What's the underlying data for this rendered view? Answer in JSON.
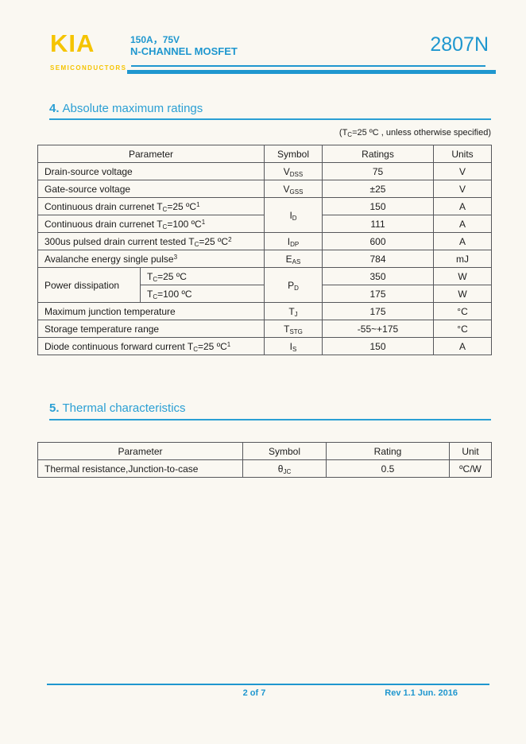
{
  "colors": {
    "accent_blue": "#1f97cf",
    "heading_blue": "#2a9fd4",
    "brand_yellow": "#f5c400"
  },
  "brand": {
    "logo": "KIA",
    "tagline": "SEMICONDUCTORS"
  },
  "header": {
    "spec_line": "150A，75V",
    "type_line": "N-CHANNEL MOSFET",
    "part_number": "2807N"
  },
  "section_abs_max": {
    "number": "4.",
    "title": "Absolute maximum ratings",
    "note": [
      [
        "(T"
      ],
      [
        "C",
        "sub"
      ],
      [
        "=25 ºC , unless otherwise specified)"
      ]
    ],
    "columns": {
      "parameter": "Parameter",
      "symbol": "Symbol",
      "ratings": "Ratings",
      "units": "Units"
    },
    "rows": {
      "drain_source_voltage": {
        "param": [
          [
            "Drain-source voltage"
          ]
        ],
        "symbol": [
          [
            "V"
          ],
          [
            "DSS",
            "sub"
          ]
        ],
        "rating": "75",
        "unit": "V"
      },
      "gate_source_voltage": {
        "param": [
          [
            "Gate-source voltage"
          ]
        ],
        "symbol": [
          [
            "V"
          ],
          [
            "GSS",
            "sub"
          ]
        ],
        "rating": "±25",
        "unit": "V"
      },
      "cont_drain_current_25": {
        "param": [
          [
            "Continuous drain currenet T"
          ],
          [
            "C",
            "sub"
          ],
          [
            "=25 ºC"
          ],
          [
            "1",
            "sup"
          ]
        ],
        "symbol": [
          [
            "I"
          ],
          [
            "D",
            "sub"
          ]
        ],
        "rating": "150",
        "unit": "A"
      },
      "cont_drain_current_100": {
        "param": [
          [
            "Continuous drain currenet T"
          ],
          [
            "C",
            "sub"
          ],
          [
            "=100 ºC"
          ],
          [
            "1",
            "sup"
          ]
        ],
        "rating": "111",
        "unit": "A"
      },
      "pulsed_drain_current": {
        "param": [
          [
            "300us pulsed drain current tested T"
          ],
          [
            "C",
            "sub"
          ],
          [
            "=25 ºC"
          ],
          [
            "2",
            "sup"
          ]
        ],
        "symbol": [
          [
            "I"
          ],
          [
            "DP",
            "sub"
          ]
        ],
        "rating": "600",
        "unit": "A"
      },
      "avalanche_energy": {
        "param": [
          [
            "Avalanche energy single pulse"
          ],
          [
            "3",
            "sup"
          ]
        ],
        "symbol": [
          [
            "E"
          ],
          [
            "AS",
            "sub"
          ]
        ],
        "rating": "784",
        "unit": "mJ"
      },
      "power_dissipation": {
        "label": [
          [
            "Power dissipation"
          ]
        ],
        "cond_25": [
          [
            "T"
          ],
          [
            "C",
            "sub"
          ],
          [
            "=25 ºC"
          ]
        ],
        "cond_100": [
          [
            "T"
          ],
          [
            "C",
            "sub"
          ],
          [
            "=100 ºC"
          ]
        ],
        "symbol": [
          [
            "P"
          ],
          [
            "D",
            "sub"
          ]
        ],
        "rating_25": "350",
        "unit_25": "W",
        "rating_100": "175",
        "unit_100": "W"
      },
      "max_junction_temp": {
        "param": [
          [
            "Maximum junction temperature"
          ]
        ],
        "symbol": [
          [
            "T"
          ],
          [
            "J",
            "sub"
          ]
        ],
        "rating": "175",
        "unit": "°C"
      },
      "storage_temp_range": {
        "param": [
          [
            "Storage temperature range"
          ]
        ],
        "symbol": [
          [
            "T"
          ],
          [
            "STG",
            "sub"
          ]
        ],
        "rating": "-55~+175",
        "unit": "°C"
      },
      "diode_forward_current": {
        "param": [
          [
            "Diode continuous forward current T"
          ],
          [
            "C",
            "sub"
          ],
          [
            "=25 ºC"
          ],
          [
            "1",
            "sup"
          ]
        ],
        "symbol": [
          [
            "I"
          ],
          [
            "S",
            "sub"
          ]
        ],
        "rating": "150",
        "unit": "A"
      }
    }
  },
  "section_thermal": {
    "number": "5.",
    "title": "Thermal characteristics",
    "columns": {
      "parameter": "Parameter",
      "symbol": "Symbol",
      "rating": "Rating",
      "unit": "Unit"
    },
    "rows": {
      "rth_jc": {
        "param": [
          [
            "Thermal resistance,Junction-to-case"
          ]
        ],
        "symbol": [
          [
            "θ"
          ],
          [
            "JC",
            "sub"
          ]
        ],
        "rating": "0.5",
        "unit": "ºC/W"
      }
    }
  },
  "footer": {
    "page_indicator": "2 of 7",
    "revision": "Rev 1.1 Jun. 2016"
  }
}
